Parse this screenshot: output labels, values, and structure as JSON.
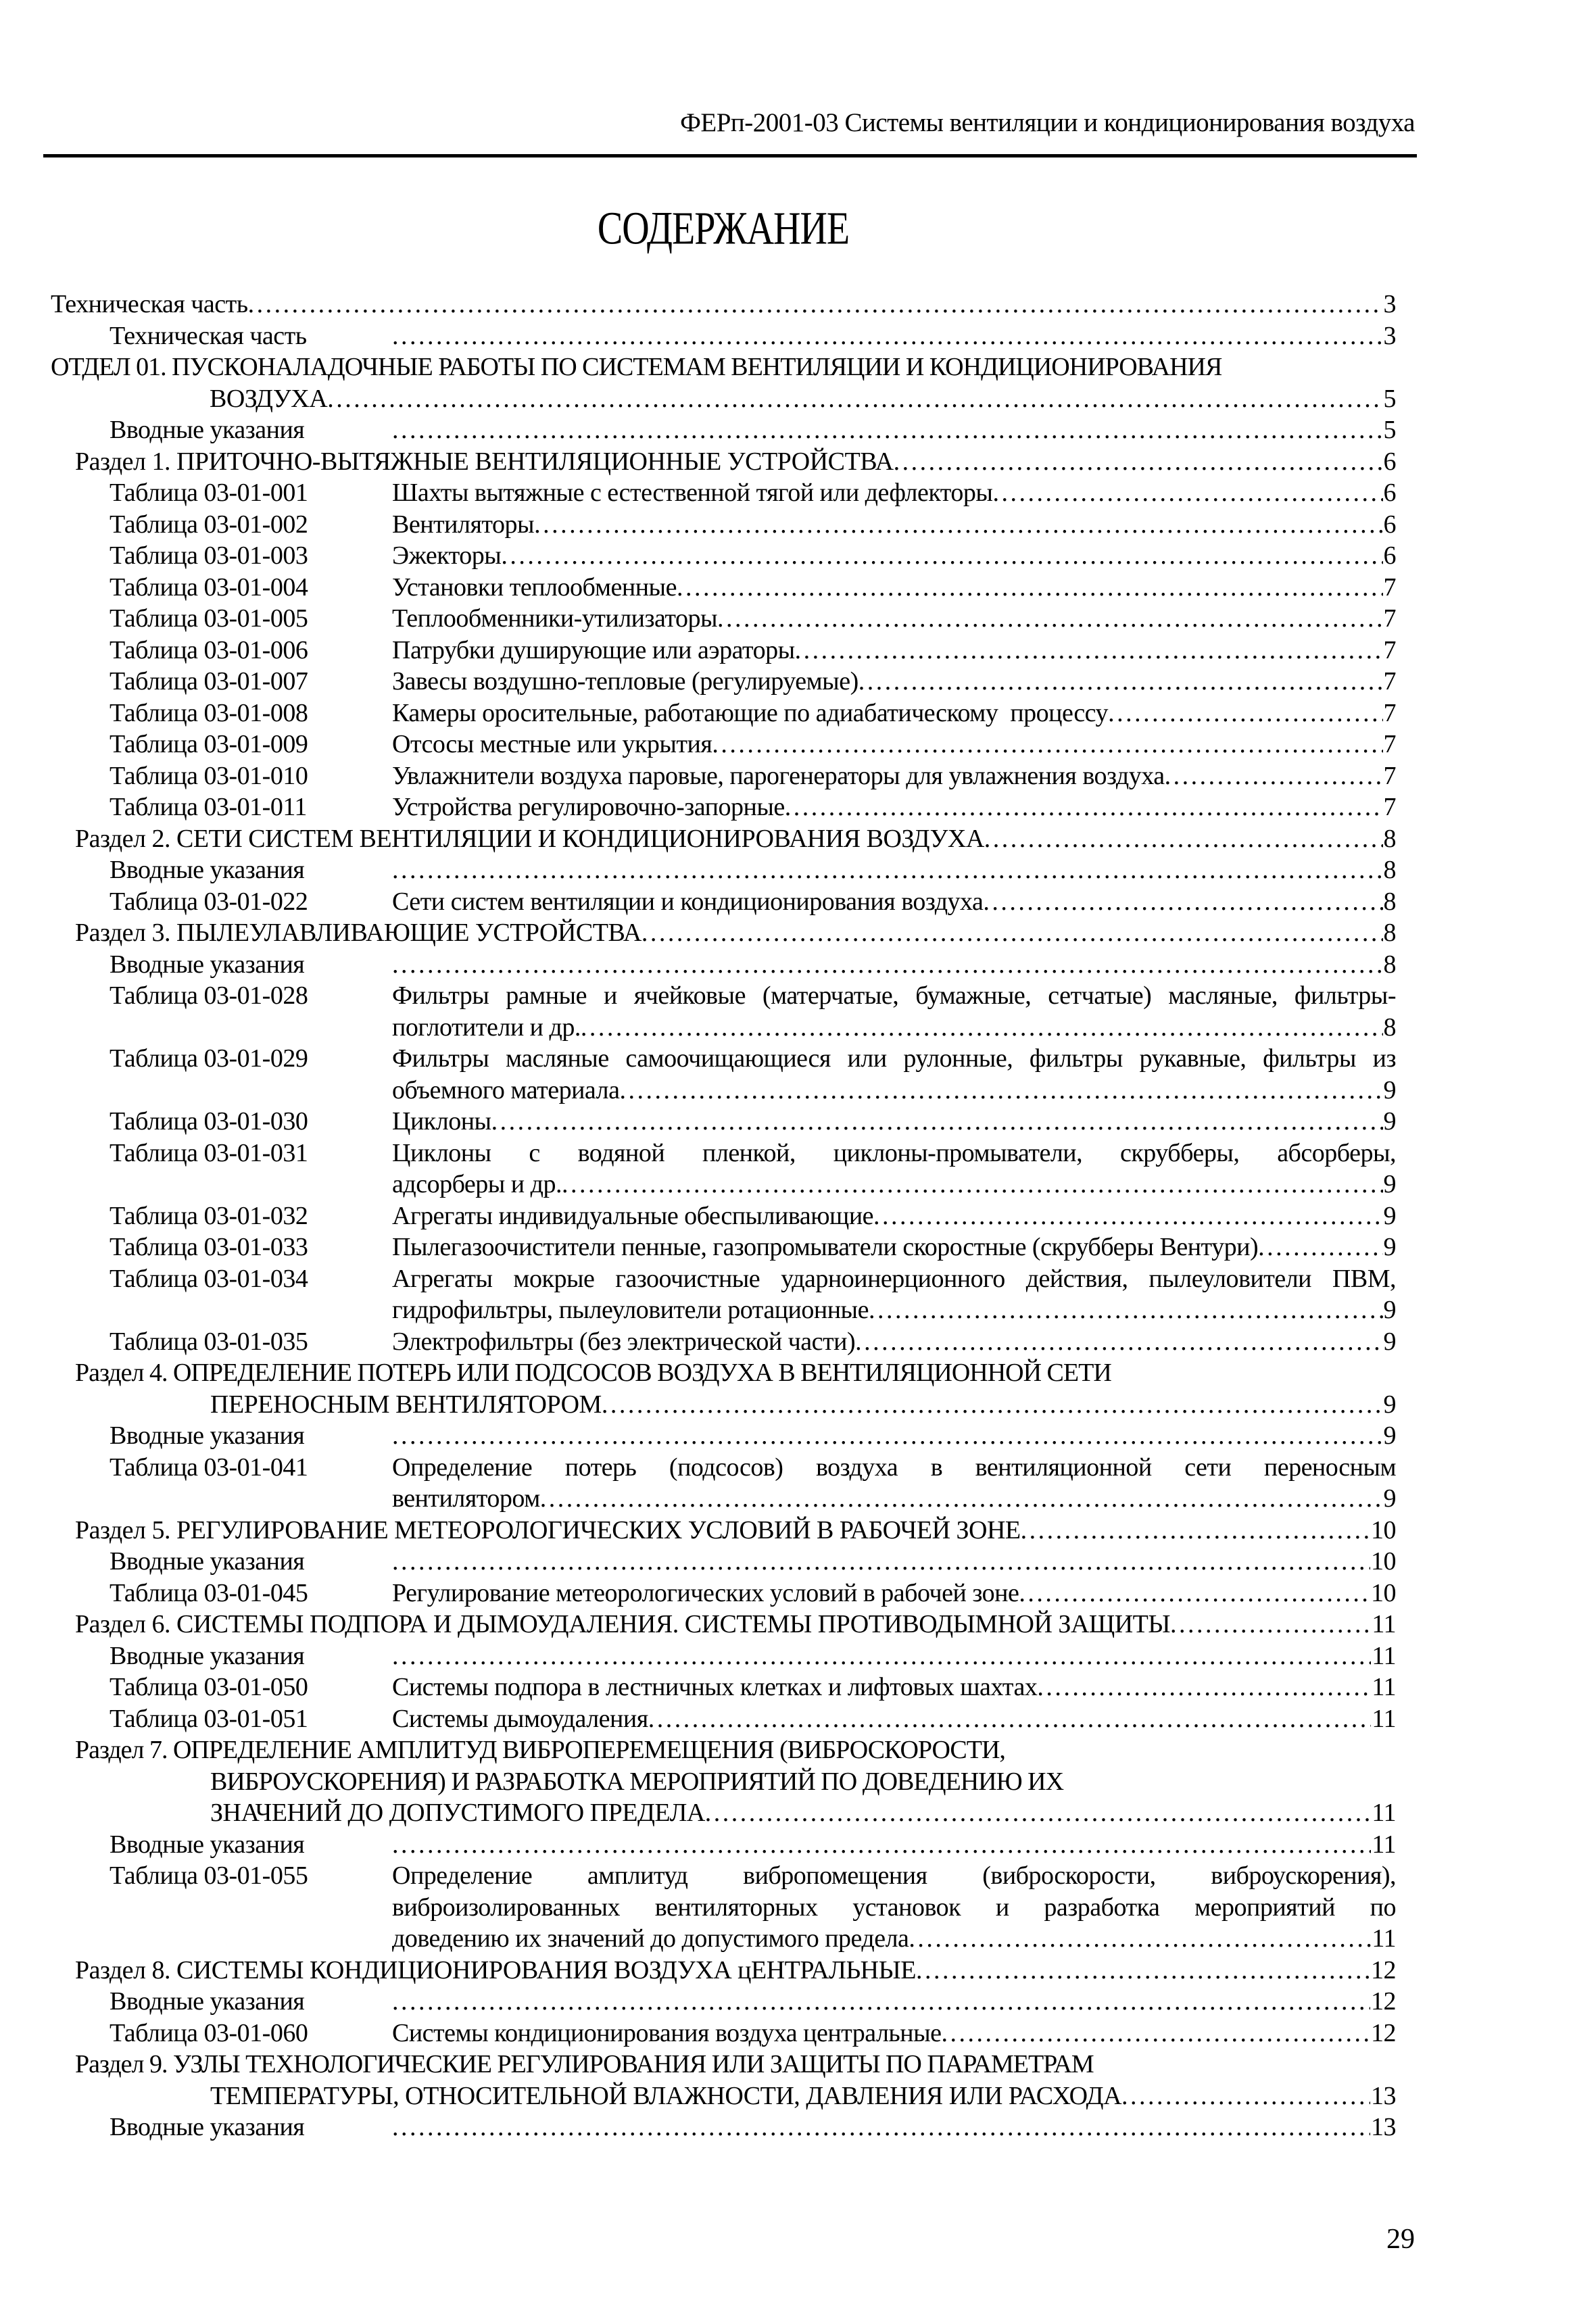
{
  "page": {
    "running_header": "ФЕРп-2001-03 Системы вентиляции и кондиционирования воздуха",
    "title": "СОДЕРЖАНИЕ",
    "page_number": "29"
  },
  "toc": [
    {
      "indent": "root",
      "lines": [
        {
          "text": "Техническая часть",
          "dots": true,
          "page": "3"
        }
      ]
    },
    {
      "indent": "sub",
      "tab": true,
      "lines": [
        {
          "text": "Техническая часть",
          "dots": true,
          "page": "3"
        }
      ]
    },
    {
      "indent": "root",
      "lines": [
        {
          "text": "ОТДЕЛ 01. ПУСКОНАЛАДОЧНЫЕ РАБОТЫ ПО СИСТЕМАМ ВЕНТИЛЯЦИИ И КОНДИЦИОНИРОВАНИЯ"
        },
        {
          "text": "ВОЗДУХА",
          "wrap": true,
          "dots": true,
          "page": "5"
        }
      ]
    },
    {
      "indent": "sub",
      "tab": true,
      "lines": [
        {
          "text": "Вводные указания",
          "dots": true,
          "page": "5"
        }
      ]
    },
    {
      "indent": "section",
      "lines": [
        {
          "text": "Раздел 1. ПРИТОЧНО-ВЫТЯЖНЫЕ ВЕНТИЛЯЦИОННЫЕ УСТРОЙСТВА",
          "dots": true,
          "page": "6"
        }
      ]
    },
    {
      "indent": "sub",
      "code": "Таблица 03-01-001",
      "lines": [
        {
          "text": "Шахты вытяжные с естественной тягой или дефлекторы",
          "dots": true,
          "page": "6"
        }
      ]
    },
    {
      "indent": "sub",
      "code": "Таблица 03-01-002",
      "lines": [
        {
          "text": "Вентиляторы",
          "dots": true,
          "page": "6"
        }
      ]
    },
    {
      "indent": "sub",
      "code": "Таблица 03-01-003",
      "lines": [
        {
          "text": "Эжекторы",
          "dots": true,
          "page": "6"
        }
      ]
    },
    {
      "indent": "sub",
      "code": "Таблица 03-01-004",
      "lines": [
        {
          "text": "Установки теплообменные",
          "dots": true,
          "page": "7"
        }
      ]
    },
    {
      "indent": "sub",
      "code": "Таблица 03-01-005",
      "lines": [
        {
          "text": "Теплообменники-утилизаторы",
          "dots": true,
          "page": "7"
        }
      ]
    },
    {
      "indent": "sub",
      "code": "Таблица 03-01-006",
      "lines": [
        {
          "text": "Патрубки душирующие или аэраторы",
          "dots": true,
          "page": "7"
        }
      ]
    },
    {
      "indent": "sub",
      "code": "Таблица 03-01-007",
      "lines": [
        {
          "text": "Завесы воздушно-тепловые (регулируемые)",
          "dots": true,
          "page": "7"
        }
      ]
    },
    {
      "indent": "sub",
      "code": "Таблица 03-01-008",
      "lines": [
        {
          "text": "Камеры оросительные, работающие по адиабатическому  процессу",
          "dots": true,
          "page": "7"
        }
      ]
    },
    {
      "indent": "sub",
      "code": "Таблица 03-01-009",
      "lines": [
        {
          "text": "Отсосы местные или укрытия",
          "dots": true,
          "page": "7"
        }
      ]
    },
    {
      "indent": "sub",
      "code": "Таблица 03-01-010",
      "lines": [
        {
          "text": "Увлажнители воздуха паровые, парогенераторы для увлажнения воздуха",
          "dots": true,
          "page": "7"
        }
      ]
    },
    {
      "indent": "sub",
      "code": "Таблица 03-01-011",
      "lines": [
        {
          "text": "Устройства регулировочно-запорные",
          "dots": true,
          "page": "7"
        }
      ]
    },
    {
      "indent": "section",
      "lines": [
        {
          "text": "Раздел 2. СЕТИ СИСТЕМ ВЕНТИЛЯЦИИ И КОНДИЦИОНИРОВАНИЯ ВОЗДУХА",
          "dots": true,
          "page": "8"
        }
      ]
    },
    {
      "indent": "sub",
      "tab": true,
      "lines": [
        {
          "text": "Вводные указания",
          "dots": true,
          "page": "8"
        }
      ]
    },
    {
      "indent": "sub",
      "code": "Таблица 03-01-022",
      "lines": [
        {
          "text": "Сети систем вентиляции и кондиционирования воздуха",
          "dots": true,
          "page": "8"
        }
      ]
    },
    {
      "indent": "section",
      "lines": [
        {
          "text": "Раздел 3. ПЫЛЕУЛАВЛИВАЮЩИЕ УСТРОЙСТВА",
          "dots": true,
          "page": "8"
        }
      ]
    },
    {
      "indent": "sub",
      "tab": true,
      "lines": [
        {
          "text": "Вводные указания",
          "dots": true,
          "page": "8"
        }
      ]
    },
    {
      "indent": "sub",
      "code": "Таблица 03-01-028",
      "lines": [
        {
          "text": "Фильтры рамные и ячейковые (матерчатые, бумажные, сетчатые) масляные, фильтры-",
          "justify": true
        },
        {
          "text": "поглотители и др.",
          "dots": true,
          "page": "8"
        }
      ]
    },
    {
      "indent": "sub",
      "code": "Таблица 03-01-029",
      "lines": [
        {
          "text": "Фильтры масляные самоочищающиеся или рулонные, фильтры рукавные, фильтры из",
          "justify": true
        },
        {
          "text": "объемного материала",
          "dots": true,
          "page": "9"
        }
      ]
    },
    {
      "indent": "sub",
      "code": "Таблица 03-01-030",
      "lines": [
        {
          "text": "Циклоны",
          "dots": true,
          "page": "9"
        }
      ]
    },
    {
      "indent": "sub",
      "code": "Таблица 03-01-031",
      "lines": [
        {
          "text": "Циклоны с водяной пленкой, циклоны-промыватели, скрубберы, абсорберы,",
          "justify": true
        },
        {
          "text": "адсорберы и др.",
          "dots": true,
          "page": "9"
        }
      ]
    },
    {
      "indent": "sub",
      "code": "Таблица 03-01-032",
      "lines": [
        {
          "text": "Агрегаты индивидуальные обеспыливающие",
          "dots": true,
          "page": "9"
        }
      ]
    },
    {
      "indent": "sub",
      "code": "Таблица 03-01-033",
      "lines": [
        {
          "text": "Пылегазоочистители пенные, газопромыватели скоростные (скрубберы Вентури)",
          "dots": true,
          "page": "9"
        }
      ]
    },
    {
      "indent": "sub",
      "code": "Таблица 03-01-034",
      "lines": [
        {
          "text": "Агрегаты мокрые газоочистные ударноинерционного действия, пылеуловители ПВМ,",
          "justify": true
        },
        {
          "text": "гидрофильтры, пылеуловители ротационные",
          "dots": true,
          "page": "9"
        }
      ]
    },
    {
      "indent": "sub",
      "code": "Таблица 03-01-035",
      "lines": [
        {
          "text": "Электрофильтры (без электрической части)",
          "dots": true,
          "page": "9"
        }
      ]
    },
    {
      "indent": "section",
      "lines": [
        {
          "text": "Раздел 4. ОПРЕДЕЛЕНИЕ ПОТЕРЬ ИЛИ ПОДСОСОВ ВОЗДУХА В ВЕНТИЛЯЦИОННОЙ СЕТИ"
        },
        {
          "text": "ПЕРЕНОСНЫМ ВЕНТИЛЯТОРОМ",
          "wrap": true,
          "dots": true,
          "page": "9"
        }
      ]
    },
    {
      "indent": "sub",
      "tab": true,
      "lines": [
        {
          "text": "Вводные указания",
          "dots": true,
          "page": "9"
        }
      ]
    },
    {
      "indent": "sub",
      "code": "Таблица 03-01-041",
      "lines": [
        {
          "text": "Определение потерь (подсосов) воздуха в вентиляционной сети переносным",
          "justify": true
        },
        {
          "text": "вентилятором",
          "dots": true,
          "page": "9"
        }
      ]
    },
    {
      "indent": "section",
      "lines": [
        {
          "text": "Раздел 5. РЕГУЛИРОВАНИЕ МЕТЕОРОЛОГИЧЕСКИХ УСЛОВИЙ В РАБОЧЕЙ ЗОНЕ",
          "dots": true,
          "page": "10"
        }
      ]
    },
    {
      "indent": "sub",
      "tab": true,
      "lines": [
        {
          "text": "Вводные указания",
          "dots": true,
          "page": "10"
        }
      ]
    },
    {
      "indent": "sub",
      "code": "Таблица 03-01-045",
      "lines": [
        {
          "text": "Регулирование метеорологических условий в рабочей зоне",
          "dots": true,
          "page": "10"
        }
      ]
    },
    {
      "indent": "section",
      "lines": [
        {
          "text": "Раздел 6. СИСТЕМЫ ПОДПОРА И ДЫМОУДАЛЕНИЯ. СИСТЕМЫ ПРОТИВОДЫМНОЙ ЗАЩИТЫ",
          "dots": true,
          "page": "11"
        }
      ]
    },
    {
      "indent": "sub",
      "tab": true,
      "lines": [
        {
          "text": "Вводные указания",
          "dots": true,
          "page": "11"
        }
      ]
    },
    {
      "indent": "sub",
      "code": "Таблица 03-01-050",
      "lines": [
        {
          "text": "Системы подпора в лестничных клетках и лифтовых шахтах",
          "dots": true,
          "page": "11"
        }
      ]
    },
    {
      "indent": "sub",
      "code": "Таблица 03-01-051",
      "lines": [
        {
          "text": "Системы дымоудаления",
          "dots": true,
          "page": "11"
        }
      ]
    },
    {
      "indent": "section",
      "lines": [
        {
          "text": "Раздел 7. ОПРЕДЕЛЕНИЕ АМПЛИТУД ВИБРОПЕРЕМЕЩЕНИЯ (ВИБРОСКОРОСТИ,"
        },
        {
          "text": "ВИБРОУСКОРЕНИЯ) И РАЗРАБОТКА МЕРОПРИЯТИЙ ПО ДОВЕДЕНИЮ ИХ",
          "wrap": true
        },
        {
          "text": "ЗНАЧЕНИЙ ДО ДОПУСТИМОГО ПРЕДЕЛА",
          "wrap": true,
          "dots": true,
          "page": "11"
        }
      ]
    },
    {
      "indent": "sub",
      "tab": true,
      "lines": [
        {
          "text": "Вводные указания",
          "dots": true,
          "page": "11"
        }
      ]
    },
    {
      "indent": "sub",
      "code": "Таблица 03-01-055",
      "lines": [
        {
          "text": "Определение амплитуд вибропомещения (виброскорости, виброускорения),",
          "justify": true
        },
        {
          "text": "виброизолированных вентиляторных установок и разработка мероприятий по",
          "justify": true
        },
        {
          "text": "доведению их значений до допустимого предела",
          "dots": true,
          "page": "11"
        }
      ]
    },
    {
      "indent": "section",
      "lines": [
        {
          "text": "Раздел 8. СИСТЕМЫ КОНДИЦИОНИРОВАНИЯ ВОЗДУХА цЕНТРАЛЬНЫЕ",
          "dots": true,
          "page": "12"
        }
      ]
    },
    {
      "indent": "sub",
      "tab": true,
      "lines": [
        {
          "text": "Вводные указания",
          "dots": true,
          "page": "12"
        }
      ]
    },
    {
      "indent": "sub",
      "code": "Таблица 03-01-060",
      "lines": [
        {
          "text": "Системы кондиционирования воздуха центральные",
          "dots": true,
          "page": "12"
        }
      ]
    },
    {
      "indent": "section",
      "lines": [
        {
          "text": "Раздел 9. УЗЛЫ ТЕХНОЛОГИЧЕСКИЕ РЕГУЛИРОВАНИЯ ИЛИ ЗАЩИТЫ ПО ПАРАМЕТРАМ"
        },
        {
          "text": "ТЕМПЕРАТУРЫ, ОТНОСИТЕЛЬНОЙ ВЛАЖНОСТИ, ДАВЛЕНИЯ ИЛИ РАСХОДА",
          "wrap": true,
          "dots": true,
          "page": "13"
        }
      ]
    },
    {
      "indent": "sub",
      "tab": true,
      "lines": [
        {
          "text": "Вводные указания",
          "dots": true,
          "page": "13"
        }
      ]
    }
  ]
}
